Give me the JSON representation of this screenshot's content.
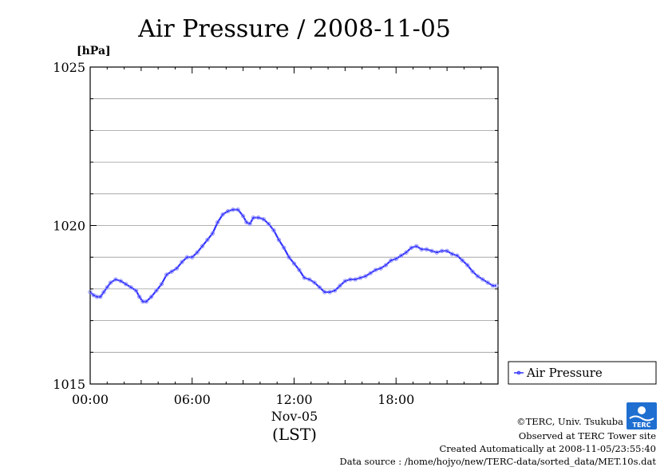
{
  "chart_data": {
    "type": "line",
    "title": "Air Pressure / 2008-11-05",
    "ylabel_unit": "[hPa]",
    "ylim": [
      1015,
      1025
    ],
    "yticks": [
      1015,
      1020,
      1025
    ],
    "ygrid_step": 1,
    "xlim": [
      0,
      24
    ],
    "xticks": [
      {
        "hour": 0,
        "label": "00:00"
      },
      {
        "hour": 6,
        "label": "06:00"
      },
      {
        "hour": 12,
        "label": "12:00"
      },
      {
        "hour": 18,
        "label": "18:00"
      }
    ],
    "date_label": "Nov-05",
    "xlabel": "(LST)",
    "grid": "horizontal",
    "legend_position": "bottom-right, outside",
    "series": [
      {
        "name": "Air Pressure",
        "color": "#3333ff",
        "x": [
          0.0,
          0.2,
          0.4,
          0.6,
          0.8,
          1.0,
          1.2,
          1.5,
          1.8,
          2.1,
          2.4,
          2.7,
          2.9,
          3.1,
          3.3,
          3.6,
          3.9,
          4.2,
          4.5,
          4.8,
          5.1,
          5.4,
          5.7,
          6.0,
          6.3,
          6.6,
          6.9,
          7.2,
          7.5,
          7.8,
          8.1,
          8.4,
          8.7,
          9.0,
          9.2,
          9.4,
          9.6,
          9.9,
          10.2,
          10.5,
          10.8,
          11.1,
          11.4,
          11.7,
          12.0,
          12.3,
          12.6,
          12.9,
          13.2,
          13.5,
          13.8,
          14.1,
          14.4,
          14.7,
          15.0,
          15.3,
          15.6,
          15.9,
          16.2,
          16.5,
          16.8,
          17.1,
          17.4,
          17.7,
          18.0,
          18.3,
          18.6,
          18.9,
          19.2,
          19.5,
          19.8,
          20.1,
          20.4,
          20.7,
          21.0,
          21.3,
          21.6,
          21.9,
          22.2,
          22.5,
          22.8,
          23.1,
          23.4,
          23.7,
          23.9
        ],
        "values": [
          1017.9,
          1017.8,
          1017.75,
          1017.75,
          1017.9,
          1018.05,
          1018.2,
          1018.3,
          1018.25,
          1018.15,
          1018.05,
          1017.95,
          1017.75,
          1017.6,
          1017.6,
          1017.75,
          1017.95,
          1018.15,
          1018.45,
          1018.55,
          1018.65,
          1018.85,
          1019.0,
          1019.0,
          1019.15,
          1019.35,
          1019.55,
          1019.75,
          1020.1,
          1020.35,
          1020.45,
          1020.5,
          1020.5,
          1020.3,
          1020.1,
          1020.05,
          1020.25,
          1020.25,
          1020.2,
          1020.05,
          1019.85,
          1019.55,
          1019.3,
          1019.0,
          1018.8,
          1018.6,
          1018.35,
          1018.3,
          1018.2,
          1018.05,
          1017.9,
          1017.9,
          1017.95,
          1018.1,
          1018.25,
          1018.3,
          1018.3,
          1018.35,
          1018.4,
          1018.5,
          1018.6,
          1018.65,
          1018.75,
          1018.9,
          1018.95,
          1019.05,
          1019.15,
          1019.3,
          1019.35,
          1019.25,
          1019.25,
          1019.2,
          1019.15,
          1019.2,
          1019.2,
          1019.1,
          1019.05,
          1018.9,
          1018.75,
          1018.55,
          1018.4,
          1018.3,
          1018.2,
          1018.1,
          1018.1
        ]
      }
    ]
  },
  "credits": {
    "copyright": "©TERC, Univ. Tsukuba",
    "observed": "Observed at TERC Tower site",
    "created": "Created Automatically at 2008-11-05/23:55:40",
    "source": "Data source : /home/hojyo/new/TERC-data/sorted_data/MET.10s.dat",
    "logo_text": "TERC"
  }
}
